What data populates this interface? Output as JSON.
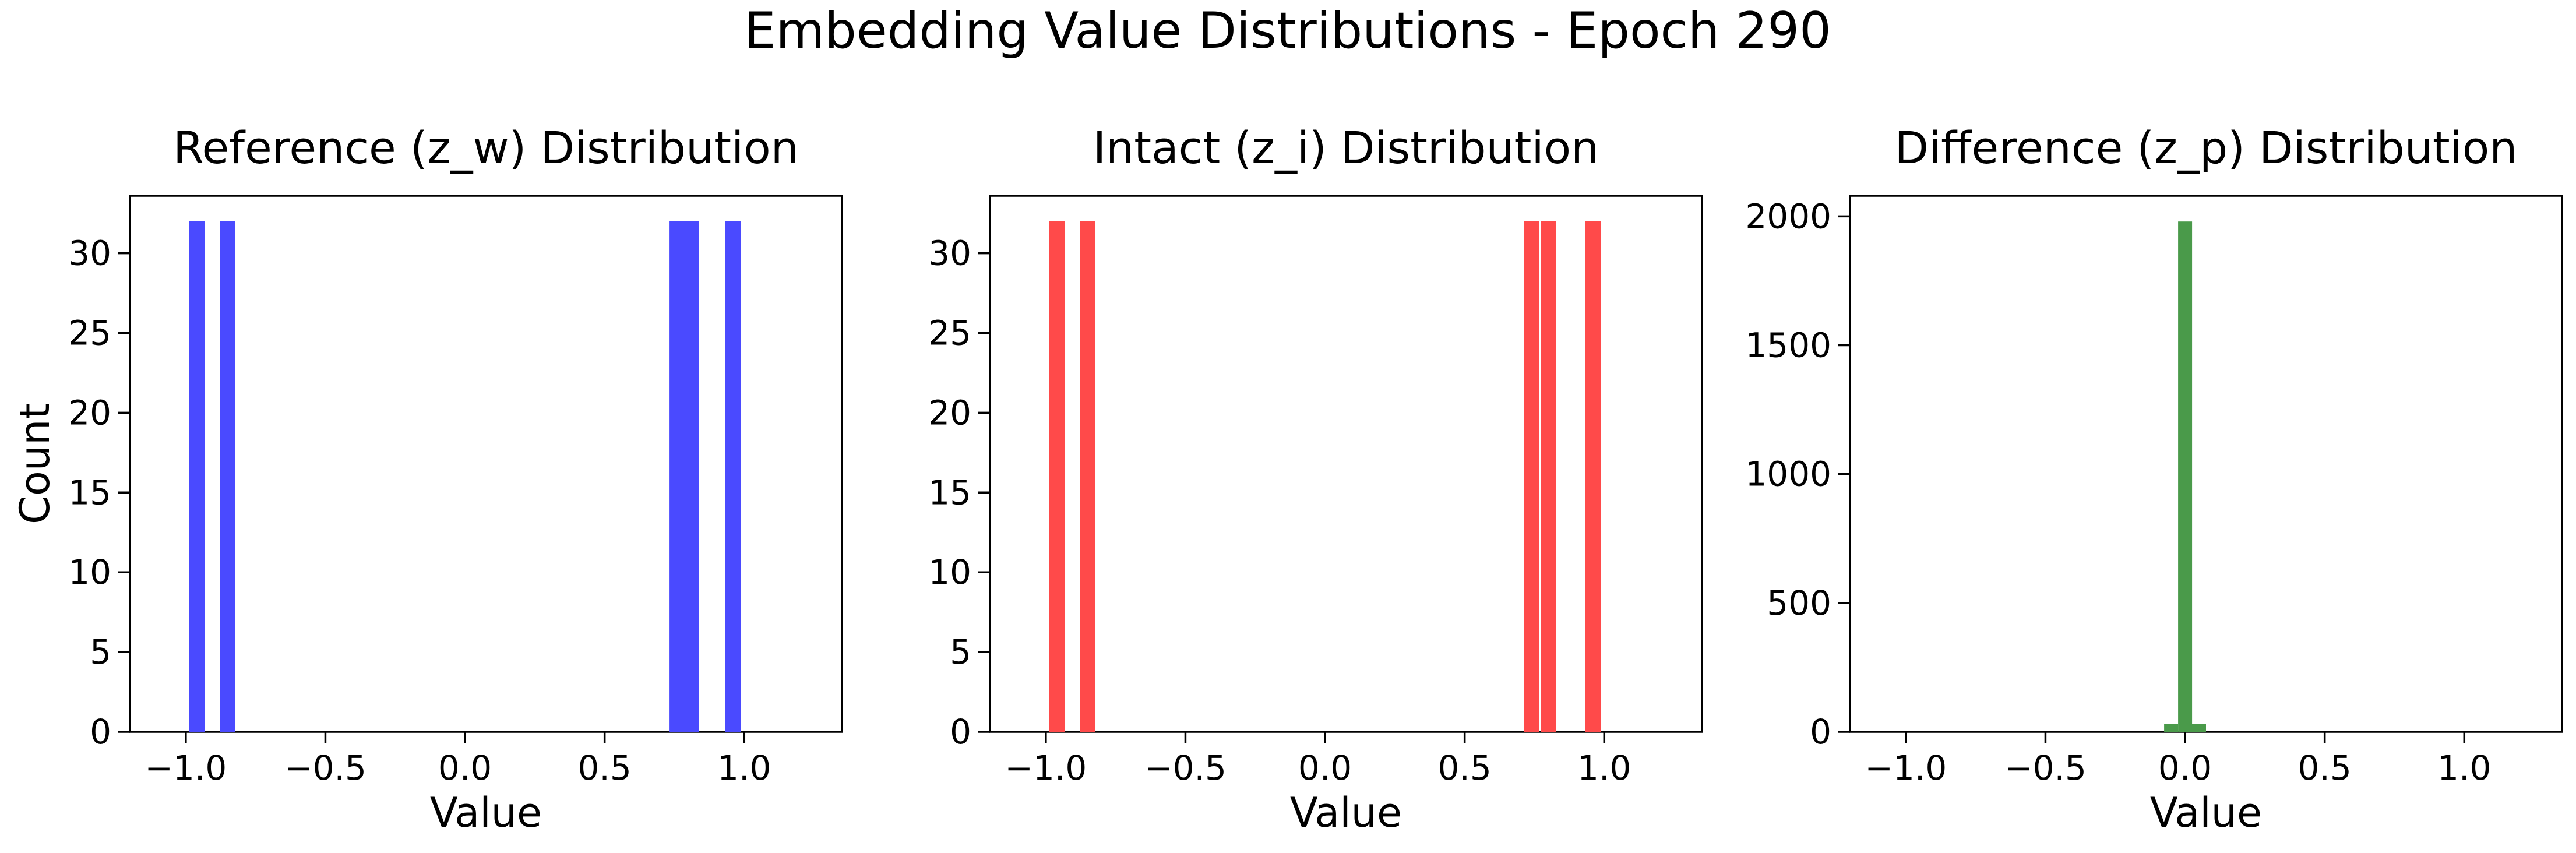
{
  "figure": {
    "suptitle": "Embedding Value Distributions - Epoch 290"
  },
  "chart_data": [
    {
      "type": "bar",
      "title": "Reference (z_w) Distribution",
      "xlabel": "Value",
      "ylabel": "Count",
      "xlim": [
        -1.2,
        1.35
      ],
      "ylim": [
        0,
        33.6
      ],
      "xticks": [
        -1.0,
        -0.5,
        0.0,
        0.5,
        1.0
      ],
      "xtick_labels": [
        "−1.0",
        "−0.5",
        "0.0",
        "0.5",
        "1.0"
      ],
      "yticks": [
        0,
        5,
        10,
        15,
        20,
        25,
        30
      ],
      "ytick_labels": [
        "0",
        "5",
        "10",
        "15",
        "20",
        "25",
        "30"
      ],
      "bin_width": 0.055,
      "bars": [
        {
          "x": -0.96,
          "value": 32
        },
        {
          "x": -0.85,
          "value": 32
        },
        {
          "x": 0.76,
          "value": 32
        },
        {
          "x": 0.81,
          "value": 32
        },
        {
          "x": 0.96,
          "value": 32
        }
      ],
      "color": "#4a4aff",
      "grid": false
    },
    {
      "type": "bar",
      "title": "Intact (z_i) Distribution",
      "xlabel": "Value",
      "ylabel": "",
      "xlim": [
        -1.2,
        1.35
      ],
      "ylim": [
        0,
        33.6
      ],
      "xticks": [
        -1.0,
        -0.5,
        0.0,
        0.5,
        1.0
      ],
      "xtick_labels": [
        "−1.0",
        "−0.5",
        "0.0",
        "0.5",
        "1.0"
      ],
      "yticks": [
        0,
        5,
        10,
        15,
        20,
        25,
        30
      ],
      "ytick_labels": [
        "0",
        "5",
        "10",
        "15",
        "20",
        "25",
        "30"
      ],
      "bin_width": 0.055,
      "bars": [
        {
          "x": -0.96,
          "value": 32
        },
        {
          "x": -0.85,
          "value": 32
        },
        {
          "x": 0.74,
          "value": 32
        },
        {
          "x": 0.8,
          "value": 32
        },
        {
          "x": 0.96,
          "value": 32
        }
      ],
      "color": "#ff4a4a",
      "grid": false
    },
    {
      "type": "bar",
      "title": "Difference (z_p) Distribution",
      "xlabel": "Value",
      "ylabel": "",
      "xlim": [
        -1.2,
        1.35
      ],
      "ylim": [
        0,
        2080
      ],
      "xticks": [
        -1.0,
        -0.5,
        0.0,
        0.5,
        1.0
      ],
      "xtick_labels": [
        "−1.0",
        "−0.5",
        "0.0",
        "0.5",
        "1.0"
      ],
      "yticks": [
        0,
        500,
        1000,
        1500,
        2000
      ],
      "ytick_labels": [
        "0",
        "500",
        "1000",
        "1500",
        "2000"
      ],
      "bin_width": 0.05,
      "bars": [
        {
          "x": -0.05,
          "value": 30
        },
        {
          "x": 0.0,
          "value": 1980
        },
        {
          "x": 0.05,
          "value": 30
        }
      ],
      "color": "#4a9a4a",
      "grid": false
    }
  ]
}
